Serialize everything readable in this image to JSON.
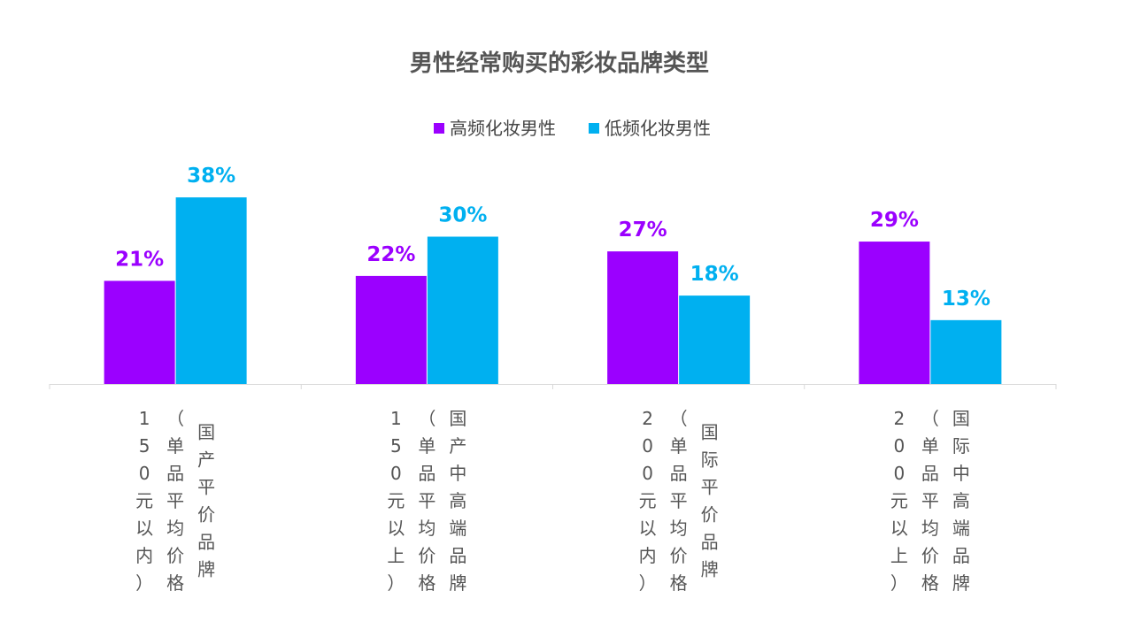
{
  "chart_data": {
    "type": "bar",
    "title": "男性经常购买的彩妆品牌类型",
    "categories": [
      "国产平价品牌（单品平均价格150元以内）",
      "国产中高端品牌（单品平均价格150元以上）",
      "国际平价品牌（单品平均价格200元以内）",
      "国际中高端品牌（单品平均价格200元以上）"
    ],
    "category_lines": [
      [
        "国产平价品牌",
        "（单品平均价格",
        "150元以内）"
      ],
      [
        "国产中高端品牌",
        "（单品平均价格",
        "150元以上）"
      ],
      [
        "国际平价品牌",
        "（单品平均价格",
        "200元以内）"
      ],
      [
        "国际中高端品牌",
        "（单品平均价格",
        "200元以上）"
      ]
    ],
    "series": [
      {
        "name": "高频化妆男性",
        "values": [
          21,
          22,
          27,
          29
        ],
        "labels": [
          "21%",
          "22%",
          "27%",
          "29%"
        ],
        "color": "#9B00FF"
      },
      {
        "name": "低频化妆男性",
        "values": [
          38,
          30,
          18,
          13
        ],
        "labels": [
          "38%",
          "30%",
          "18%",
          "13%"
        ],
        "color": "#00B0F0"
      }
    ],
    "unit": "%",
    "ylim": [
      0,
      40
    ],
    "grid": false,
    "legend_position": "top-center",
    "xlabel": "",
    "ylabel": ""
  }
}
